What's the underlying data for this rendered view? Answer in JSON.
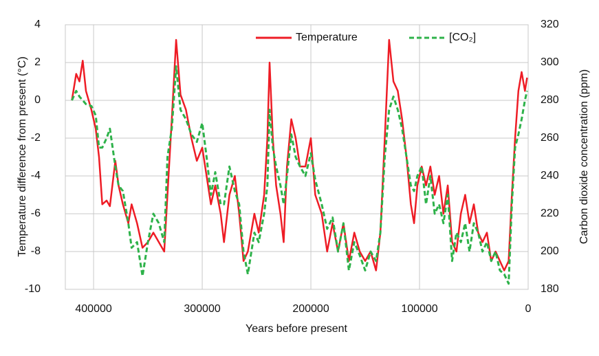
{
  "chart_data": {
    "type": "line",
    "x_label": "Years before present",
    "y_label": "Temperature difference from present (°C)",
    "y2_label": "Carbon dioxide concentration (ppm)",
    "xlim": [
      426000,
      0
    ],
    "xticks": [
      400000,
      300000,
      200000,
      100000,
      0
    ],
    "ylim": [
      -10,
      4
    ],
    "yticks": [
      4,
      2,
      0,
      -2,
      -4,
      -6,
      -8,
      -10
    ],
    "y2lim": [
      180,
      320
    ],
    "y2ticks": [
      320,
      300,
      280,
      260,
      240,
      220,
      200,
      180
    ],
    "grid": true,
    "legend": "top",
    "x": [
      420000,
      416000,
      413000,
      410000,
      407000,
      402000,
      398000,
      395000,
      392000,
      388000,
      385000,
      380000,
      377000,
      373000,
      368000,
      365000,
      360000,
      355000,
      350000,
      345000,
      340000,
      335000,
      332000,
      328000,
      324000,
      320000,
      315000,
      310000,
      305000,
      300000,
      296000,
      292000,
      288000,
      283000,
      280000,
      275000,
      270000,
      266000,
      262000,
      258000,
      252000,
      248000,
      243000,
      240000,
      238000,
      235000,
      232000,
      228000,
      225000,
      222000,
      218000,
      214000,
      210000,
      205000,
      200000,
      196000,
      190000,
      185000,
      180000,
      175000,
      170000,
      165000,
      160000,
      155000,
      150000,
      145000,
      140000,
      136000,
      132000,
      128000,
      124000,
      120000,
      116000,
      112000,
      108000,
      105000,
      102000,
      98000,
      94000,
      90000,
      86000,
      82000,
      78000,
      74000,
      70000,
      66000,
      62000,
      58000,
      54000,
      50000,
      46000,
      42000,
      38000,
      34000,
      30000,
      26000,
      22000,
      18000,
      15000,
      12000,
      9000,
      6000,
      3000,
      1000
    ],
    "series": [
      {
        "name": "Temperature",
        "color": "#ee1c25",
        "dash": false,
        "values": [
          0,
          1.4,
          1.0,
          2.1,
          0.5,
          -0.5,
          -1.5,
          -3,
          -5.5,
          -5.3,
          -5.6,
          -3.2,
          -4.5,
          -5.5,
          -6.5,
          -5.5,
          -6.5,
          -7.8,
          -7.5,
          -7.0,
          -7.5,
          -8.0,
          -5.0,
          -1.0,
          3.2,
          0.3,
          -0.5,
          -2.0,
          -3.2,
          -2.5,
          -4.0,
          -5.5,
          -4.5,
          -6.0,
          -7.5,
          -5.0,
          -4.0,
          -6.0,
          -8.5,
          -8.0,
          -6.0,
          -7.0,
          -5.0,
          -2.0,
          2.0,
          -2.0,
          -4.5,
          -6.0,
          -7.5,
          -3.5,
          -1.0,
          -2.0,
          -3.5,
          -3.5,
          -2.0,
          -5.0,
          -6.0,
          -8.0,
          -6.5,
          -8.0,
          -6.5,
          -8.5,
          -7.0,
          -8.0,
          -8.5,
          -8.0,
          -9.0,
          -7.0,
          -2.0,
          3.2,
          1.0,
          0.5,
          -1.0,
          -3.0,
          -5.5,
          -6.5,
          -4.5,
          -3.5,
          -4.5,
          -3.5,
          -5.0,
          -4.0,
          -6.0,
          -4.5,
          -7.5,
          -8.0,
          -6.0,
          -5.0,
          -6.5,
          -5.5,
          -7.0,
          -7.5,
          -7.0,
          -8.5,
          -8.0,
          -8.5,
          -9.0,
          -8.5,
          -5.0,
          -2.0,
          0.5,
          1.5,
          0.5,
          1.2
        ]
      },
      {
        "name": "[CO₂]",
        "color": "#2eb24a",
        "dash": true,
        "axis": "y2",
        "values": [
          280,
          285,
          282,
          280,
          278,
          277,
          272,
          255,
          255,
          260,
          265,
          245,
          235,
          232,
          215,
          202,
          205,
          187,
          205,
          220,
          215,
          205,
          250,
          265,
          298,
          275,
          270,
          262,
          258,
          268,
          250,
          230,
          242,
          225,
          225,
          245,
          232,
          225,
          200,
          188,
          210,
          205,
          220,
          235,
          275,
          255,
          245,
          235,
          225,
          240,
          262,
          250,
          245,
          240,
          252,
          238,
          225,
          212,
          218,
          200,
          215,
          190,
          205,
          198,
          190,
          200,
          195,
          210,
          250,
          275,
          282,
          275,
          265,
          250,
          235,
          232,
          240,
          245,
          225,
          240,
          220,
          225,
          215,
          230,
          195,
          210,
          205,
          215,
          200,
          215,
          210,
          200,
          205,
          195,
          200,
          190,
          188,
          183,
          225,
          255,
          262,
          270,
          280,
          285
        ]
      }
    ]
  }
}
